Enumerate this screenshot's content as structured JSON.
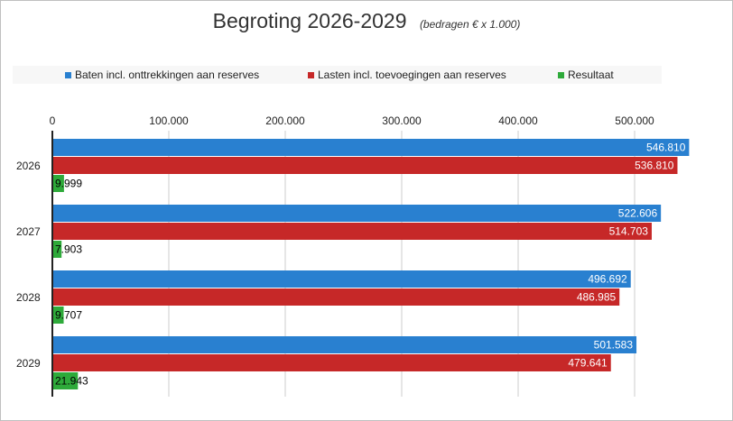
{
  "chart_data": {
    "type": "bar",
    "orientation": "horizontal",
    "title": "Begroting 2026-2029",
    "subtitle": "(bedragen  € x 1.000)",
    "categories": [
      "2026",
      "2027",
      "2028",
      "2029"
    ],
    "series": [
      {
        "name": "Baten incl. onttrekkingen aan reserves",
        "color": "#2980d0",
        "values": [
          546810,
          522606,
          496692,
          501583
        ],
        "labels": [
          "546.810",
          "522.606",
          "496.692",
          "501.583"
        ],
        "label_color": "#ffffff"
      },
      {
        "name": "Lasten incl. toevoegingen aan reserves",
        "color": "#c62828",
        "values": [
          536810,
          514703,
          486985,
          479641
        ],
        "labels": [
          "536.810",
          "514.703",
          "486.985",
          "479.641"
        ],
        "label_color": "#ffffff"
      },
      {
        "name": "Resultaat",
        "color": "#2eaa3a",
        "values": [
          9999,
          7903,
          9707,
          21943
        ],
        "labels": [
          "9.999",
          "7.903",
          "9.707",
          "21.943"
        ],
        "label_color": "#000000"
      }
    ],
    "xlim": [
      0,
      550000
    ],
    "xticks": [
      0,
      100000,
      200000,
      300000,
      400000,
      500000
    ],
    "xtick_labels": [
      "0",
      "100.000",
      "200.000",
      "300.000",
      "400.000",
      "500.000"
    ],
    "x_axis_position": "top",
    "legend_position": "top",
    "grid": true
  }
}
